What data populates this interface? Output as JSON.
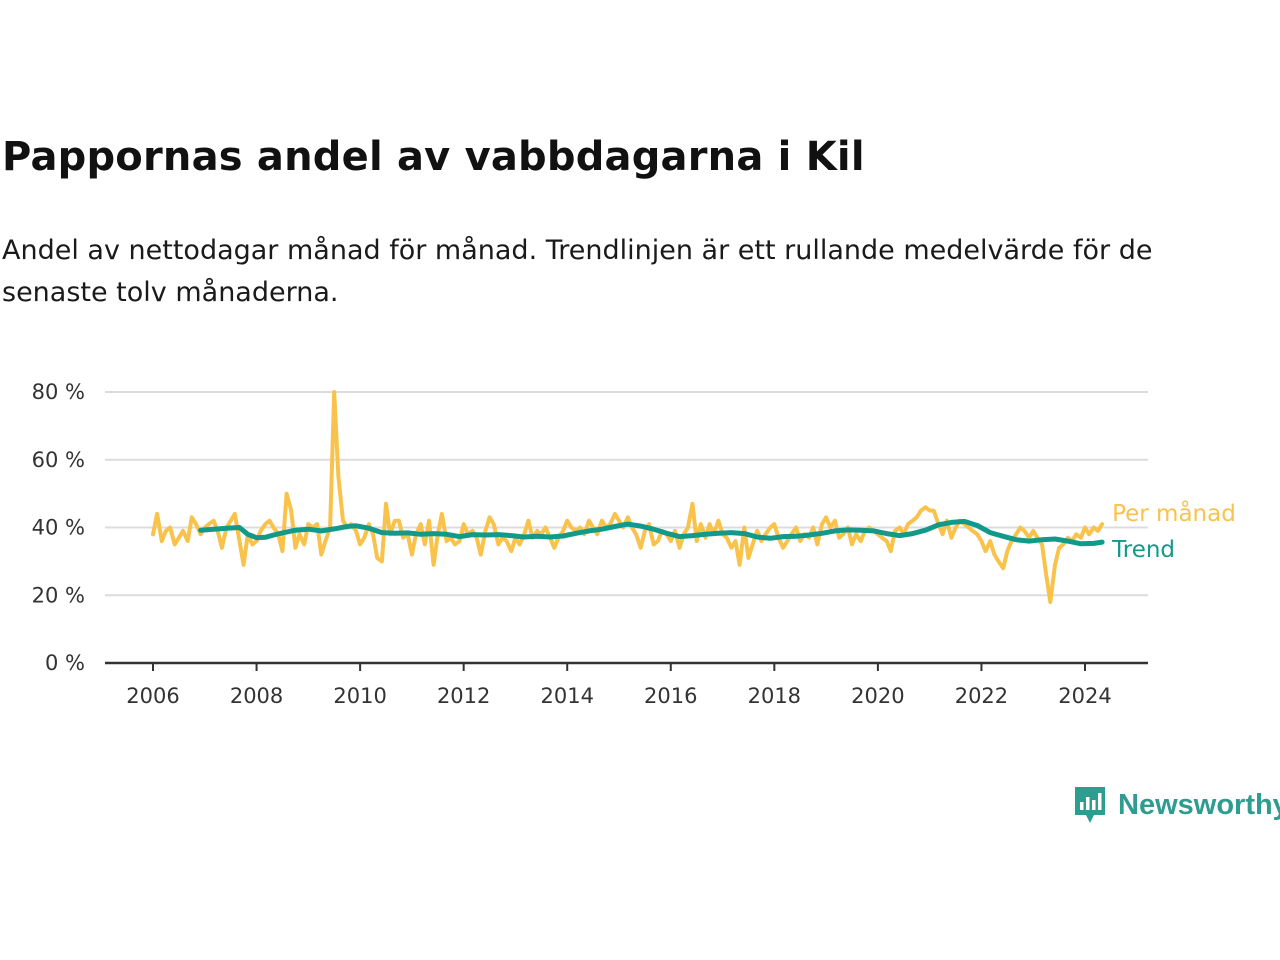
{
  "title": "Pappornas andel av vabbdagarna i Kil",
  "subtitle": "Andel av nettodagar månad för månad. Trendlinjen är ett rullande medelvärde för de senaste tolv månaderna.",
  "brand": {
    "name": "Newsworthy",
    "icon": "newsworthy-chart-bubble-icon",
    "color": "#2e9c8e"
  },
  "chart_data": {
    "type": "line",
    "x_unit": "year",
    "xlim": [
      2006.0,
      2024.5
    ],
    "ylim": [
      0,
      80
    ],
    "x_ticks": [
      "2006",
      "2008",
      "2010",
      "2012",
      "2014",
      "2016",
      "2018",
      "2020",
      "2022",
      "2024"
    ],
    "y_ticks": [
      "0 %",
      "20 %",
      "40 %",
      "60 %",
      "80 %"
    ],
    "grid": true,
    "legend": "line-end labels",
    "series": [
      {
        "name": "Per månad",
        "color": "#f9c34b",
        "points": [
          [
            2006.0,
            38
          ],
          [
            2006.08,
            44
          ],
          [
            2006.17,
            36
          ],
          [
            2006.25,
            39
          ],
          [
            2006.33,
            40
          ],
          [
            2006.42,
            35
          ],
          [
            2006.5,
            37
          ],
          [
            2006.58,
            39
          ],
          [
            2006.67,
            36
          ],
          [
            2006.75,
            43
          ],
          [
            2006.83,
            41
          ],
          [
            2006.92,
            38
          ],
          [
            2007.0,
            40
          ],
          [
            2007.08,
            41
          ],
          [
            2007.17,
            42
          ],
          [
            2007.25,
            39
          ],
          [
            2007.33,
            34
          ],
          [
            2007.42,
            40
          ],
          [
            2007.5,
            42
          ],
          [
            2007.58,
            44
          ],
          [
            2007.67,
            36
          ],
          [
            2007.75,
            29
          ],
          [
            2007.83,
            38
          ],
          [
            2007.92,
            35
          ],
          [
            2008.0,
            36
          ],
          [
            2008.08,
            39
          ],
          [
            2008.17,
            41
          ],
          [
            2008.25,
            42
          ],
          [
            2008.33,
            40
          ],
          [
            2008.42,
            38
          ],
          [
            2008.5,
            33
          ],
          [
            2008.58,
            50
          ],
          [
            2008.67,
            45
          ],
          [
            2008.75,
            34
          ],
          [
            2008.83,
            38
          ],
          [
            2008.92,
            35
          ],
          [
            2009.0,
            41
          ],
          [
            2009.08,
            40
          ],
          [
            2009.17,
            41
          ],
          [
            2009.25,
            32
          ],
          [
            2009.33,
            36
          ],
          [
            2009.42,
            40
          ],
          [
            2009.5,
            80
          ],
          [
            2009.58,
            55
          ],
          [
            2009.67,
            42
          ],
          [
            2009.75,
            40
          ],
          [
            2009.83,
            41
          ],
          [
            2009.92,
            39
          ],
          [
            2010.0,
            35
          ],
          [
            2010.08,
            37
          ],
          [
            2010.17,
            41
          ],
          [
            2010.25,
            38
          ],
          [
            2010.33,
            31
          ],
          [
            2010.42,
            30
          ],
          [
            2010.5,
            47
          ],
          [
            2010.58,
            38
          ],
          [
            2010.67,
            42
          ],
          [
            2010.75,
            42
          ],
          [
            2010.83,
            37
          ],
          [
            2010.92,
            38
          ],
          [
            2011.0,
            32
          ],
          [
            2011.08,
            38
          ],
          [
            2011.17,
            41
          ],
          [
            2011.25,
            35
          ],
          [
            2011.33,
            42
          ],
          [
            2011.42,
            29
          ],
          [
            2011.5,
            38
          ],
          [
            2011.58,
            44
          ],
          [
            2011.67,
            36
          ],
          [
            2011.75,
            37
          ],
          [
            2011.83,
            35
          ],
          [
            2011.92,
            36
          ],
          [
            2012.0,
            41
          ],
          [
            2012.08,
            38
          ],
          [
            2012.17,
            39
          ],
          [
            2012.25,
            37
          ],
          [
            2012.33,
            32
          ],
          [
            2012.42,
            39
          ],
          [
            2012.5,
            43
          ],
          [
            2012.58,
            41
          ],
          [
            2012.67,
            35
          ],
          [
            2012.75,
            37
          ],
          [
            2012.83,
            36
          ],
          [
            2012.92,
            33
          ],
          [
            2013.0,
            37
          ],
          [
            2013.08,
            35
          ],
          [
            2013.17,
            38
          ],
          [
            2013.25,
            42
          ],
          [
            2013.33,
            37
          ],
          [
            2013.42,
            39
          ],
          [
            2013.5,
            38
          ],
          [
            2013.58,
            40
          ],
          [
            2013.67,
            37
          ],
          [
            2013.75,
            34
          ],
          [
            2013.83,
            37
          ],
          [
            2013.92,
            39
          ],
          [
            2014.0,
            42
          ],
          [
            2014.08,
            40
          ],
          [
            2014.17,
            39
          ],
          [
            2014.25,
            40
          ],
          [
            2014.33,
            38
          ],
          [
            2014.42,
            42
          ],
          [
            2014.5,
            40
          ],
          [
            2014.58,
            38
          ],
          [
            2014.67,
            42
          ],
          [
            2014.75,
            40
          ],
          [
            2014.83,
            41
          ],
          [
            2014.92,
            44
          ],
          [
            2015.0,
            42
          ],
          [
            2015.08,
            40
          ],
          [
            2015.17,
            43
          ],
          [
            2015.25,
            40
          ],
          [
            2015.33,
            38
          ],
          [
            2015.42,
            34
          ],
          [
            2015.5,
            39
          ],
          [
            2015.58,
            41
          ],
          [
            2015.67,
            35
          ],
          [
            2015.75,
            36
          ],
          [
            2015.83,
            39
          ],
          [
            2015.92,
            38
          ],
          [
            2016.0,
            36
          ],
          [
            2016.08,
            39
          ],
          [
            2016.17,
            34
          ],
          [
            2016.25,
            38
          ],
          [
            2016.33,
            40
          ],
          [
            2016.42,
            47
          ],
          [
            2016.5,
            36
          ],
          [
            2016.58,
            41
          ],
          [
            2016.67,
            37
          ],
          [
            2016.75,
            41
          ],
          [
            2016.83,
            38
          ],
          [
            2016.92,
            42
          ],
          [
            2017.0,
            38
          ],
          [
            2017.08,
            37
          ],
          [
            2017.17,
            34
          ],
          [
            2017.25,
            36
          ],
          [
            2017.33,
            29
          ],
          [
            2017.42,
            40
          ],
          [
            2017.5,
            31
          ],
          [
            2017.58,
            35
          ],
          [
            2017.67,
            39
          ],
          [
            2017.75,
            36
          ],
          [
            2017.83,
            38
          ],
          [
            2017.92,
            40
          ],
          [
            2018.0,
            41
          ],
          [
            2018.08,
            37
          ],
          [
            2018.17,
            34
          ],
          [
            2018.25,
            36
          ],
          [
            2018.33,
            38
          ],
          [
            2018.42,
            40
          ],
          [
            2018.5,
            36
          ],
          [
            2018.58,
            38
          ],
          [
            2018.67,
            37
          ],
          [
            2018.75,
            40
          ],
          [
            2018.83,
            35
          ],
          [
            2018.92,
            41
          ],
          [
            2019.0,
            43
          ],
          [
            2019.08,
            40
          ],
          [
            2019.17,
            42
          ],
          [
            2019.25,
            37
          ],
          [
            2019.33,
            38
          ],
          [
            2019.42,
            40
          ],
          [
            2019.5,
            35
          ],
          [
            2019.58,
            38
          ],
          [
            2019.67,
            36
          ],
          [
            2019.75,
            39
          ],
          [
            2019.83,
            40
          ],
          [
            2019.92,
            39
          ],
          [
            2020.0,
            38
          ],
          [
            2020.08,
            37
          ],
          [
            2020.17,
            36
          ],
          [
            2020.25,
            33
          ],
          [
            2020.33,
            39
          ],
          [
            2020.42,
            40
          ],
          [
            2020.5,
            38
          ],
          [
            2020.58,
            41
          ],
          [
            2020.67,
            42
          ],
          [
            2020.75,
            43
          ],
          [
            2020.83,
            45
          ],
          [
            2020.92,
            46
          ],
          [
            2021.0,
            45
          ],
          [
            2021.08,
            45
          ],
          [
            2021.17,
            41
          ],
          [
            2021.25,
            38
          ],
          [
            2021.33,
            42
          ],
          [
            2021.42,
            37
          ],
          [
            2021.5,
            40
          ],
          [
            2021.58,
            42
          ],
          [
            2021.67,
            41
          ],
          [
            2021.75,
            40
          ],
          [
            2021.83,
            39
          ],
          [
            2021.92,
            38
          ],
          [
            2022.0,
            36
          ],
          [
            2022.08,
            33
          ],
          [
            2022.17,
            36
          ],
          [
            2022.25,
            32
          ],
          [
            2022.33,
            30
          ],
          [
            2022.42,
            28
          ],
          [
            2022.5,
            33
          ],
          [
            2022.58,
            36
          ],
          [
            2022.67,
            38
          ],
          [
            2022.75,
            40
          ],
          [
            2022.83,
            39
          ],
          [
            2022.92,
            37
          ],
          [
            2023.0,
            39
          ],
          [
            2023.08,
            37
          ],
          [
            2023.17,
            35
          ],
          [
            2023.25,
            26
          ],
          [
            2023.33,
            18
          ],
          [
            2023.42,
            29
          ],
          [
            2023.5,
            34
          ],
          [
            2023.58,
            35
          ],
          [
            2023.67,
            37
          ],
          [
            2023.75,
            36
          ],
          [
            2023.83,
            38
          ],
          [
            2023.92,
            37
          ],
          [
            2024.0,
            40
          ],
          [
            2024.08,
            38
          ],
          [
            2024.17,
            40
          ],
          [
            2024.25,
            39
          ],
          [
            2024.33,
            41
          ]
        ]
      },
      {
        "name": "Trend",
        "color": "#12998a",
        "points": [
          [
            2006.92,
            39.2
          ],
          [
            2007.17,
            39.5
          ],
          [
            2007.42,
            39.8
          ],
          [
            2007.67,
            40.0
          ],
          [
            2007.83,
            38.0
          ],
          [
            2008.0,
            37.0
          ],
          [
            2008.17,
            37.1
          ],
          [
            2008.33,
            37.8
          ],
          [
            2008.5,
            38.4
          ],
          [
            2008.75,
            39.2
          ],
          [
            2009.0,
            39.5
          ],
          [
            2009.25,
            39.0
          ],
          [
            2009.5,
            39.6
          ],
          [
            2009.75,
            40.3
          ],
          [
            2009.92,
            40.5
          ],
          [
            2010.17,
            39.8
          ],
          [
            2010.42,
            38.5
          ],
          [
            2010.67,
            38.3
          ],
          [
            2010.92,
            38.4
          ],
          [
            2011.17,
            38.0
          ],
          [
            2011.42,
            38.2
          ],
          [
            2011.67,
            38.0
          ],
          [
            2011.92,
            37.3
          ],
          [
            2012.17,
            37.9
          ],
          [
            2012.42,
            37.8
          ],
          [
            2012.67,
            37.9
          ],
          [
            2012.92,
            37.6
          ],
          [
            2013.17,
            37.2
          ],
          [
            2013.42,
            37.4
          ],
          [
            2013.67,
            37.2
          ],
          [
            2013.92,
            37.5
          ],
          [
            2014.17,
            38.3
          ],
          [
            2014.42,
            39.0
          ],
          [
            2014.67,
            39.5
          ],
          [
            2014.92,
            40.3
          ],
          [
            2015.17,
            41.0
          ],
          [
            2015.42,
            40.4
          ],
          [
            2015.67,
            39.5
          ],
          [
            2015.92,
            38.3
          ],
          [
            2016.17,
            37.3
          ],
          [
            2016.42,
            37.6
          ],
          [
            2016.67,
            38.0
          ],
          [
            2016.92,
            38.3
          ],
          [
            2017.17,
            38.5
          ],
          [
            2017.42,
            38.2
          ],
          [
            2017.67,
            37.2
          ],
          [
            2017.92,
            36.8
          ],
          [
            2018.17,
            37.3
          ],
          [
            2018.42,
            37.4
          ],
          [
            2018.67,
            37.8
          ],
          [
            2018.92,
            38.3
          ],
          [
            2019.17,
            39.0
          ],
          [
            2019.42,
            39.3
          ],
          [
            2019.67,
            39.2
          ],
          [
            2019.92,
            39.0
          ],
          [
            2020.17,
            38.2
          ],
          [
            2020.42,
            37.6
          ],
          [
            2020.67,
            38.2
          ],
          [
            2020.92,
            39.2
          ],
          [
            2021.17,
            40.8
          ],
          [
            2021.42,
            41.5
          ],
          [
            2021.67,
            41.8
          ],
          [
            2021.92,
            40.6
          ],
          [
            2022.17,
            38.5
          ],
          [
            2022.42,
            37.4
          ],
          [
            2022.67,
            36.4
          ],
          [
            2022.92,
            36.0
          ],
          [
            2023.17,
            36.4
          ],
          [
            2023.42,
            36.6
          ],
          [
            2023.67,
            36.0
          ],
          [
            2023.92,
            35.2
          ],
          [
            2024.17,
            35.3
          ],
          [
            2024.33,
            35.7
          ]
        ]
      }
    ]
  }
}
